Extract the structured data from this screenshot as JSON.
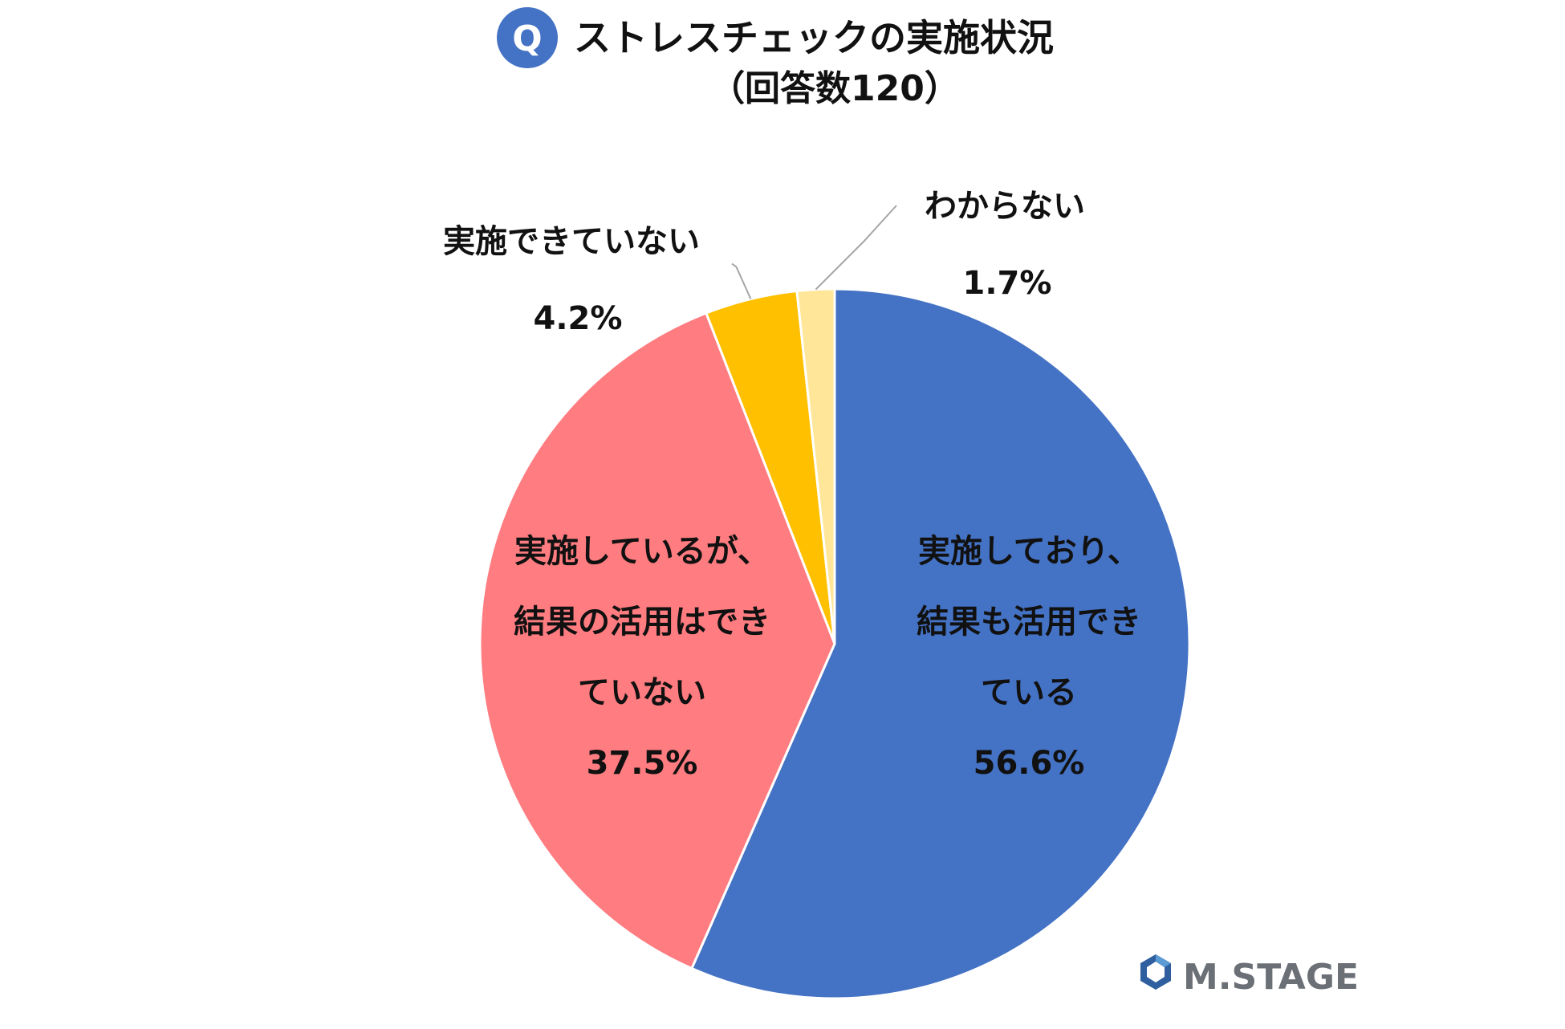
{
  "title": {
    "badge": "Q",
    "line1": "ストレスチェックの実施状況",
    "line2": "（回答数120）"
  },
  "brand": {
    "name": "M.STAGE"
  },
  "colors": {
    "badge": "#4472C4",
    "logo_dark": "#2f5f9e",
    "logo_light": "#5b9bd5"
  },
  "chart_data": {
    "type": "pie",
    "start": "12-o'clock",
    "direction": "clockwise",
    "slices": [
      {
        "label_lines": [
          "実施しており、",
          "結果も活用でき",
          "ている"
        ],
        "value": 56.6,
        "value_label": "56.6%",
        "color": "#4472C4"
      },
      {
        "label_lines": [
          "実施しているが、",
          "結果の活用はでき",
          "ていない"
        ],
        "value": 37.5,
        "value_label": "37.5%",
        "color": "#FF7C80"
      },
      {
        "label_lines": [
          "実施できていない"
        ],
        "value": 4.2,
        "value_label": "4.2%",
        "color": "#FFC000"
      },
      {
        "label_lines": [
          "わからない"
        ],
        "value": 1.7,
        "value_label": "1.7%",
        "color": "#FFE699"
      }
    ]
  }
}
